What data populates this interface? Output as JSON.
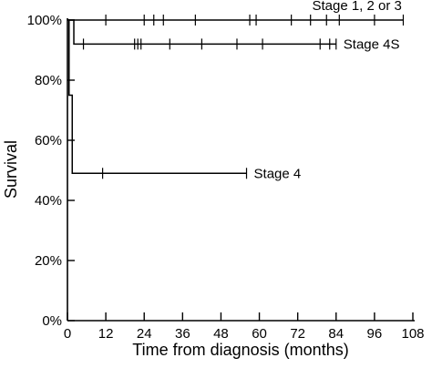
{
  "chart_data": {
    "type": "line",
    "subtype": "kaplan-meier step",
    "title": "",
    "xlabel": "Time from diagnosis (months)",
    "ylabel": "Survival",
    "xlim": [
      0,
      108
    ],
    "ylim": [
      0,
      100
    ],
    "x_ticks": [
      0,
      12,
      24,
      36,
      48,
      60,
      72,
      84,
      96,
      108
    ],
    "x_tick_labels": [
      "0",
      "12",
      "24",
      "36",
      "48",
      "60",
      "72",
      "84",
      "96",
      "108"
    ],
    "y_ticks": [
      0,
      20,
      40,
      60,
      80,
      100
    ],
    "y_tick_labels": [
      "0%",
      "20%",
      "40%",
      "60%",
      "80%",
      "100%"
    ],
    "grid": false,
    "legend": "none (inline series labels)",
    "series": [
      {
        "name": "Stage 1, 2 or 3",
        "steps": [
          [
            0,
            100
          ],
          [
            105,
            100
          ]
        ],
        "censored": [
          12,
          24,
          27,
          30,
          40,
          57,
          59,
          70,
          76,
          81,
          85,
          96,
          105
        ]
      },
      {
        "name": "Stage 4S",
        "steps": [
          [
            0,
            100
          ],
          [
            2,
            92
          ],
          [
            84,
            92
          ]
        ],
        "censored": [
          5,
          21,
          22,
          23,
          32,
          42,
          53,
          61,
          79,
          82,
          84
        ]
      },
      {
        "name": "Stage 4",
        "steps": [
          [
            0,
            100
          ],
          [
            0.5,
            75
          ],
          [
            1.5,
            49
          ],
          [
            56,
            49
          ]
        ],
        "censored": [
          11,
          56
        ]
      }
    ]
  }
}
